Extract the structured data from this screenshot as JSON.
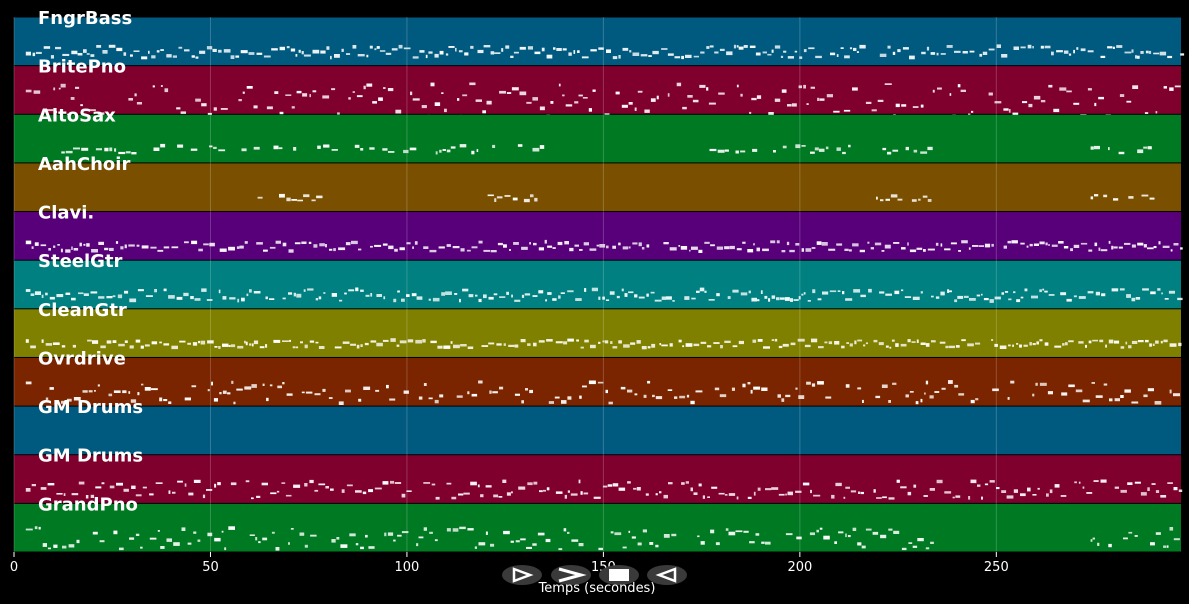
{
  "chart_data": {
    "type": "piano-roll",
    "xlabel": "Temps (secondes)",
    "xlim": [
      0,
      297
    ],
    "xticks": [
      0,
      50,
      100,
      150,
      200,
      250
    ],
    "grid": true,
    "tracks": [
      {
        "name": "FngrBass",
        "color": "#005a80",
        "activity": [
          [
            3,
            297
          ]
        ],
        "density": 0.9,
        "spread": 0.12
      },
      {
        "name": "BritePno",
        "color": "#80002d",
        "activity": [
          [
            3,
            297
          ]
        ],
        "density": 0.85,
        "spread": 0.35
      },
      {
        "name": "AltoSax",
        "color": "#007a22",
        "activity": [
          [
            9,
            136
          ],
          [
            177,
            233
          ],
          [
            274,
            290
          ]
        ],
        "density": 0.55,
        "spread": 0.08
      },
      {
        "name": "AahChoir",
        "color": "#7a5000",
        "activity": [
          [
            62,
            78
          ],
          [
            120,
            136
          ],
          [
            217,
            233
          ],
          [
            274,
            290
          ]
        ],
        "density": 0.6,
        "spread": 0.06
      },
      {
        "name": "Clavi.",
        "color": "#58007a",
        "activity": [
          [
            3,
            297
          ]
        ],
        "density": 0.95,
        "spread": 0.1
      },
      {
        "name": "SteelGtr",
        "color": "#008080",
        "activity": [
          [
            3,
            297
          ]
        ],
        "density": 0.9,
        "spread": 0.12
      },
      {
        "name": "CleanGtr",
        "color": "#808000",
        "activity": [
          [
            3,
            297
          ]
        ],
        "density": 0.9,
        "spread": 0.08
      },
      {
        "name": "Ovrdrive",
        "color": "#7a2500",
        "activity": [
          [
            3,
            297
          ]
        ],
        "density": 0.75,
        "spread": 0.22
      },
      {
        "name": "GM Drums",
        "color": "#005a80",
        "activity": [
          [
            2,
            3
          ]
        ],
        "density": 0.2,
        "spread": 0.05
      },
      {
        "name": "GM Drums",
        "color": "#80002d",
        "activity": [
          [
            3,
            297
          ]
        ],
        "density": 0.85,
        "spread": 0.18
      },
      {
        "name": "GrandPno",
        "color": "#007a22",
        "activity": [
          [
            3,
            235
          ],
          [
            274,
            297
          ]
        ],
        "density": 0.75,
        "spread": 0.22
      }
    ]
  },
  "controls": {
    "items": [
      {
        "name": "play-button",
        "icon": "play-icon"
      },
      {
        "name": "fast-forward-button",
        "icon": "fast-forward-icon"
      },
      {
        "name": "stop-button",
        "icon": "stop-icon"
      },
      {
        "name": "rewind-button",
        "icon": "rewind-icon"
      }
    ]
  },
  "colors": {
    "background": "#000000",
    "grid": "#ffffff",
    "notes": "#ffffff"
  }
}
